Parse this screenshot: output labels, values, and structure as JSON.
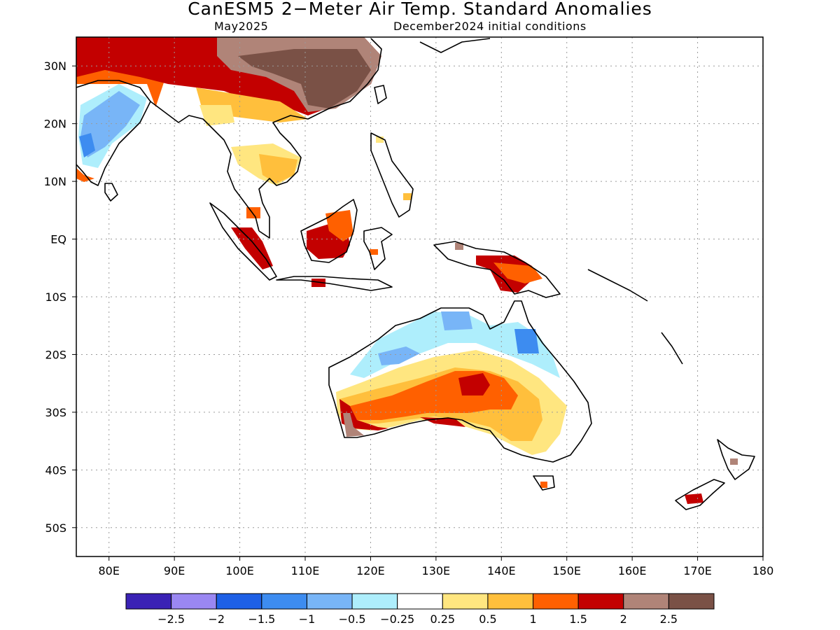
{
  "title": "CanESM5 2−Meter Air Temp. Standard Anomalies",
  "subtitle_left": "May2025",
  "subtitle_right": "December2024 initial conditions",
  "lon_labels": [
    "80E",
    "90E",
    "100E",
    "110E",
    "120E",
    "130E",
    "140E",
    "150E",
    "160E",
    "170E",
    "180"
  ],
  "lon_values": [
    80,
    90,
    100,
    110,
    120,
    130,
    140,
    150,
    160,
    170,
    180
  ],
  "lat_labels": [
    "30N",
    "20N",
    "10N",
    "EQ",
    "10S",
    "20S",
    "30S",
    "40S",
    "50S"
  ],
  "lat_values": [
    30,
    20,
    10,
    0,
    -10,
    -20,
    -30,
    -40,
    -50
  ],
  "lon_range": [
    75,
    180
  ],
  "lat_range": [
    -55,
    35
  ],
  "colorbar": {
    "colors": [
      "#3a22b5",
      "#9a87f2",
      "#1e60e6",
      "#3d8cf0",
      "#78b5f7",
      "#aeeefc",
      "#ffffff",
      "#ffe680",
      "#ffbf3c",
      "#ff6000",
      "#c30000",
      "#b08478",
      "#7a5146"
    ],
    "labels": [
      "−2.5",
      "−2",
      "−1.5",
      "−1",
      "−0.5",
      "−0.25",
      "0.25",
      "0.5",
      "1",
      "1.5",
      "2",
      "2.5"
    ]
  }
}
